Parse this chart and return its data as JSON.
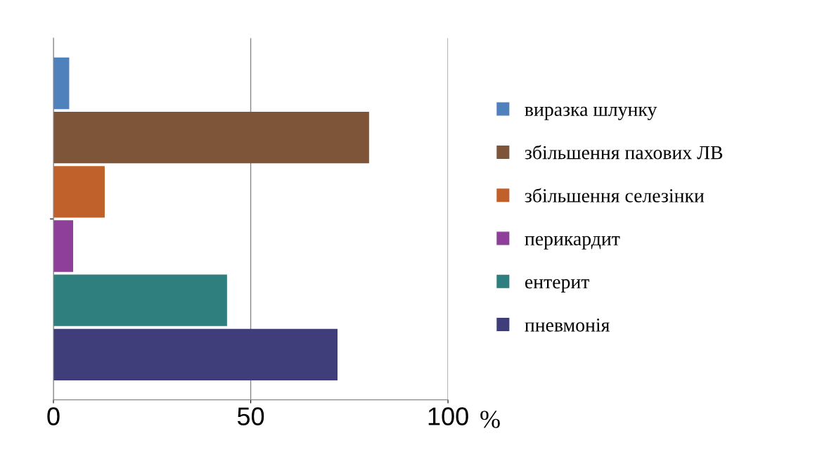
{
  "chart_data": {
    "type": "bar",
    "orientation": "horizontal",
    "categories": [
      null
    ],
    "series": [
      {
        "name": "виразка шлунку",
        "color": "#4f81bd",
        "values": [
          4
        ]
      },
      {
        "name": "збільшення пахових ЛВ",
        "color": "#7f5539",
        "values": [
          80
        ]
      },
      {
        "name": "збільшення селезінки",
        "color": "#c0602a",
        "values": [
          13
        ]
      },
      {
        "name": "перикардит",
        "color": "#8e3f9a",
        "values": [
          5
        ]
      },
      {
        "name": "ентерит",
        "color": "#2f7f7f",
        "values": [
          44
        ]
      },
      {
        "name": "пневмонія",
        "color": "#3f3d7a",
        "values": [
          72
        ]
      }
    ],
    "xlim": [
      0,
      100
    ],
    "xticks": [
      0,
      50,
      100
    ],
    "xlabel": "%",
    "grid": "x",
    "legend": "right",
    "tick_labels": "x"
  }
}
